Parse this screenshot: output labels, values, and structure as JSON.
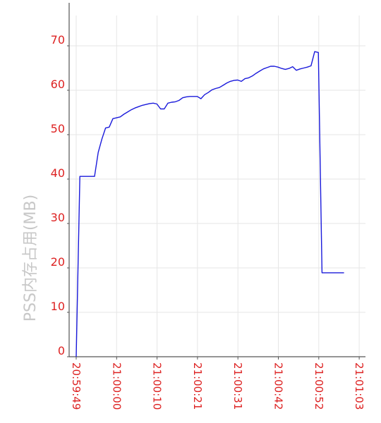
{
  "chart_data": {
    "type": "line",
    "title": "",
    "xlabel": "",
    "ylabel": "PSS内存占用(MB)",
    "ylim": [
      0,
      80
    ],
    "y_ticks": [
      "0",
      "10",
      "20",
      "30",
      "40",
      "50",
      "60",
      "70"
    ],
    "x_tick_labels": [
      "20:59:49",
      "21:00:00",
      "21:00:10",
      "21:00:21",
      "21:00:31",
      "21:00:42",
      "21:00:52",
      "21:01:03"
    ],
    "grid": true,
    "colors": {
      "line": "#1a1adb",
      "tick_labels": "#dd2222",
      "ylabel": "#c8c8c8",
      "grid": "#e6e6e6",
      "axis": "#555555"
    },
    "series": [
      {
        "x": [
          0,
          1,
          5,
          6,
          7,
          8,
          9,
          10,
          11,
          12,
          13,
          14,
          15,
          16,
          17,
          18,
          19,
          20,
          21,
          22,
          23,
          24,
          25,
          26,
          27,
          28,
          29,
          30,
          31,
          32,
          33,
          34,
          35,
          36,
          37,
          38,
          39,
          40,
          41,
          42,
          43,
          44,
          45,
          46,
          47,
          48,
          49,
          50,
          51,
          52,
          53,
          54,
          55,
          56,
          57,
          58,
          59,
          60,
          61,
          62,
          63,
          64,
          65,
          66,
          67,
          68,
          69,
          70,
          71,
          72,
          73
        ],
        "y": [
          0,
          40.6,
          40.6,
          46,
          49,
          51.5,
          51.7,
          53.6,
          53.8,
          54,
          54.6,
          55.1,
          55.6,
          56,
          56.3,
          56.6,
          56.8,
          57,
          57.1,
          56.9,
          55.8,
          55.8,
          57.1,
          57.3,
          57.4,
          57.7,
          58.3,
          58.5,
          58.6,
          58.6,
          58.6,
          58.1,
          59,
          59.5,
          60.1,
          60.4,
          60.6,
          61.1,
          61.6,
          62,
          62.2,
          62.3,
          62,
          62.6,
          62.8,
          63.2,
          63.8,
          64.3,
          64.8,
          65.1,
          65.4,
          65.4,
          65.2,
          64.9,
          64.7,
          64.9,
          65.3,
          64.5,
          64.8,
          65,
          65.2,
          65.5,
          68.7,
          68.5,
          18.9,
          18.9,
          18.9,
          18.9,
          18.9,
          18.9,
          18.9
        ]
      }
    ]
  }
}
